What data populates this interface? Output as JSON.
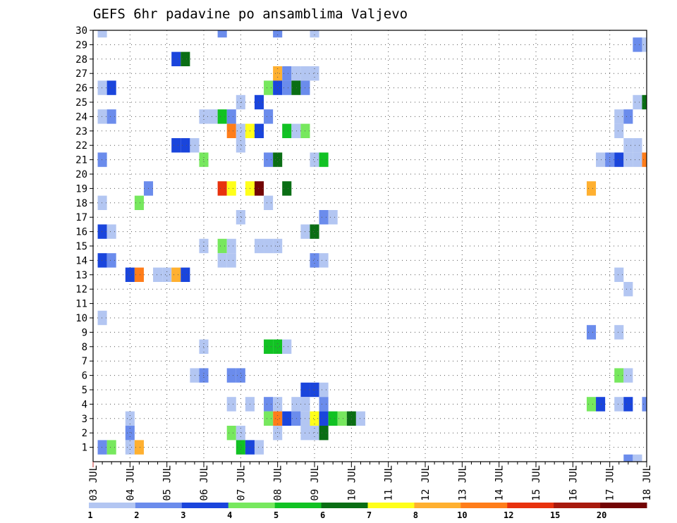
{
  "chart_data": {
    "type": "heatmap",
    "title": "GEFS 6hr padavine po ansamblima Valjevo",
    "xlabel": "",
    "ylabel": "",
    "x_ticks": [
      "03 JUL",
      "04 JUL",
      "05 JUL",
      "06 JUL",
      "07 JUL",
      "08 JUL",
      "09 JUL",
      "10 JUL",
      "11 JUL",
      "12 JUL",
      "13 JUL",
      "14 JUL",
      "15 JUL",
      "16 JUL",
      "17 JUL",
      "18 JUL"
    ],
    "y_ticks": [
      "1",
      "2",
      "3",
      "4",
      "5",
      "6",
      "7",
      "8",
      "9",
      "10",
      "11",
      "12",
      "13",
      "14",
      "15",
      "16",
      "17",
      "18",
      "19",
      "20",
      "21",
      "22",
      "23",
      "24",
      "25",
      "26",
      "27",
      "28",
      "29",
      "30"
    ],
    "xlim": [
      0,
      60
    ],
    "ylim": [
      0,
      30
    ],
    "x_unit": "6-hour steps from 03 JUL 00Z",
    "grid": true,
    "legend_position": "bottom",
    "legend": {
      "labels": [
        "1",
        "2",
        "3",
        "4",
        "5",
        "6",
        "7",
        "8",
        "10",
        "12",
        "15",
        "20"
      ],
      "colors": [
        "#b3c6f2",
        "#6b8cec",
        "#1a45dc",
        "#77e85e",
        "#11c223",
        "#0a6e14",
        "#ffff1a",
        "#ffb030",
        "#ff7d1a",
        "#e8320e",
        "#a81a0e",
        "#730505"
      ]
    },
    "cells": [
      [
        1,
        30,
        1
      ],
      [
        14,
        30,
        2
      ],
      [
        20,
        30,
        2
      ],
      [
        24,
        30,
        1
      ],
      [
        59,
        29,
        2
      ],
      [
        60,
        29,
        1
      ],
      [
        9,
        28,
        3
      ],
      [
        10,
        28,
        6
      ],
      [
        20,
        27,
        8
      ],
      [
        21,
        27,
        2
      ],
      [
        22,
        27,
        1
      ],
      [
        23,
        27,
        1
      ],
      [
        24,
        27,
        1
      ],
      [
        1,
        26,
        1
      ],
      [
        2,
        26,
        3
      ],
      [
        19,
        26,
        4
      ],
      [
        20,
        26,
        3
      ],
      [
        21,
        26,
        2
      ],
      [
        22,
        26,
        6
      ],
      [
        23,
        26,
        2
      ],
      [
        16,
        25,
        1
      ],
      [
        18,
        25,
        3
      ],
      [
        59,
        25,
        1
      ],
      [
        60,
        25,
        6
      ],
      [
        1,
        24,
        1
      ],
      [
        2,
        24,
        2
      ],
      [
        12,
        24,
        1
      ],
      [
        13,
        24,
        1
      ],
      [
        14,
        24,
        5
      ],
      [
        15,
        24,
        2
      ],
      [
        19,
        24,
        2
      ],
      [
        57,
        24,
        1
      ],
      [
        58,
        24,
        2
      ],
      [
        15,
        23,
        9
      ],
      [
        16,
        23,
        1
      ],
      [
        17,
        23,
        7
      ],
      [
        18,
        23,
        3
      ],
      [
        21,
        23,
        5
      ],
      [
        22,
        23,
        1
      ],
      [
        23,
        23,
        4
      ],
      [
        57,
        23,
        1
      ],
      [
        9,
        22,
        3
      ],
      [
        10,
        22,
        3
      ],
      [
        11,
        22,
        1
      ],
      [
        16,
        22,
        1
      ],
      [
        58,
        22,
        1
      ],
      [
        59,
        22,
        1
      ],
      [
        1,
        21,
        2
      ],
      [
        12,
        21,
        4
      ],
      [
        19,
        21,
        2
      ],
      [
        20,
        21,
        6
      ],
      [
        24,
        21,
        1
      ],
      [
        25,
        21,
        5
      ],
      [
        55,
        21,
        1
      ],
      [
        56,
        21,
        2
      ],
      [
        57,
        21,
        3
      ],
      [
        58,
        21,
        1
      ],
      [
        59,
        21,
        1
      ],
      [
        60,
        21,
        9
      ],
      [
        6,
        19,
        2
      ],
      [
        14,
        19,
        10
      ],
      [
        15,
        19,
        7
      ],
      [
        17,
        19,
        7
      ],
      [
        18,
        19,
        12
      ],
      [
        21,
        19,
        6
      ],
      [
        54,
        19,
        8
      ],
      [
        1,
        18,
        1
      ],
      [
        5,
        18,
        4
      ],
      [
        19,
        18,
        1
      ],
      [
        16,
        17,
        1
      ],
      [
        25,
        17,
        2
      ],
      [
        26,
        17,
        1
      ],
      [
        1,
        16,
        3
      ],
      [
        2,
        16,
        1
      ],
      [
        23,
        16,
        1
      ],
      [
        24,
        16,
        6
      ],
      [
        12,
        15,
        1
      ],
      [
        14,
        15,
        4
      ],
      [
        15,
        15,
        1
      ],
      [
        18,
        15,
        1
      ],
      [
        19,
        15,
        1
      ],
      [
        20,
        15,
        1
      ],
      [
        1,
        14,
        3
      ],
      [
        2,
        14,
        2
      ],
      [
        14,
        14,
        1
      ],
      [
        15,
        14,
        1
      ],
      [
        24,
        14,
        2
      ],
      [
        25,
        14,
        1
      ],
      [
        4,
        13,
        3
      ],
      [
        5,
        13,
        9
      ],
      [
        7,
        13,
        1
      ],
      [
        8,
        13,
        1
      ],
      [
        9,
        13,
        8
      ],
      [
        10,
        13,
        3
      ],
      [
        57,
        13,
        1
      ],
      [
        58,
        12,
        1
      ],
      [
        1,
        10,
        1
      ],
      [
        54,
        9,
        2
      ],
      [
        57,
        9,
        1
      ],
      [
        12,
        8,
        1
      ],
      [
        19,
        8,
        5
      ],
      [
        20,
        8,
        5
      ],
      [
        21,
        8,
        1
      ],
      [
        11,
        6,
        1
      ],
      [
        12,
        6,
        2
      ],
      [
        15,
        6,
        2
      ],
      [
        16,
        6,
        2
      ],
      [
        57,
        6,
        4
      ],
      [
        58,
        6,
        1
      ],
      [
        23,
        5,
        3
      ],
      [
        24,
        5,
        3
      ],
      [
        25,
        5,
        1
      ],
      [
        15,
        4,
        1
      ],
      [
        17,
        4,
        1
      ],
      [
        19,
        4,
        2
      ],
      [
        20,
        4,
        1
      ],
      [
        22,
        4,
        1
      ],
      [
        23,
        4,
        1
      ],
      [
        25,
        4,
        2
      ],
      [
        54,
        4,
        4
      ],
      [
        55,
        4,
        3
      ],
      [
        57,
        4,
        1
      ],
      [
        58,
        4,
        3
      ],
      [
        60,
        4,
        2
      ],
      [
        4,
        3,
        1
      ],
      [
        20,
        3,
        9
      ],
      [
        21,
        3,
        3
      ],
      [
        22,
        3,
        2
      ],
      [
        23,
        3,
        1
      ],
      [
        24,
        3,
        7
      ],
      [
        25,
        3,
        3
      ],
      [
        26,
        3,
        5
      ],
      [
        27,
        3,
        4
      ],
      [
        28,
        3,
        6
      ],
      [
        29,
        3,
        1
      ],
      [
        19,
        3,
        4
      ],
      [
        4,
        2,
        2
      ],
      [
        15,
        2,
        4
      ],
      [
        16,
        2,
        1
      ],
      [
        20,
        2,
        1
      ],
      [
        23,
        2,
        1
      ],
      [
        24,
        2,
        1
      ],
      [
        25,
        2,
        6
      ],
      [
        1,
        1,
        2
      ],
      [
        2,
        1,
        4
      ],
      [
        4,
        1,
        1
      ],
      [
        5,
        1,
        8
      ],
      [
        16,
        1,
        5
      ],
      [
        17,
        1,
        3
      ],
      [
        18,
        1,
        1
      ],
      [
        58,
        0,
        2
      ],
      [
        59,
        0,
        1
      ]
    ]
  }
}
